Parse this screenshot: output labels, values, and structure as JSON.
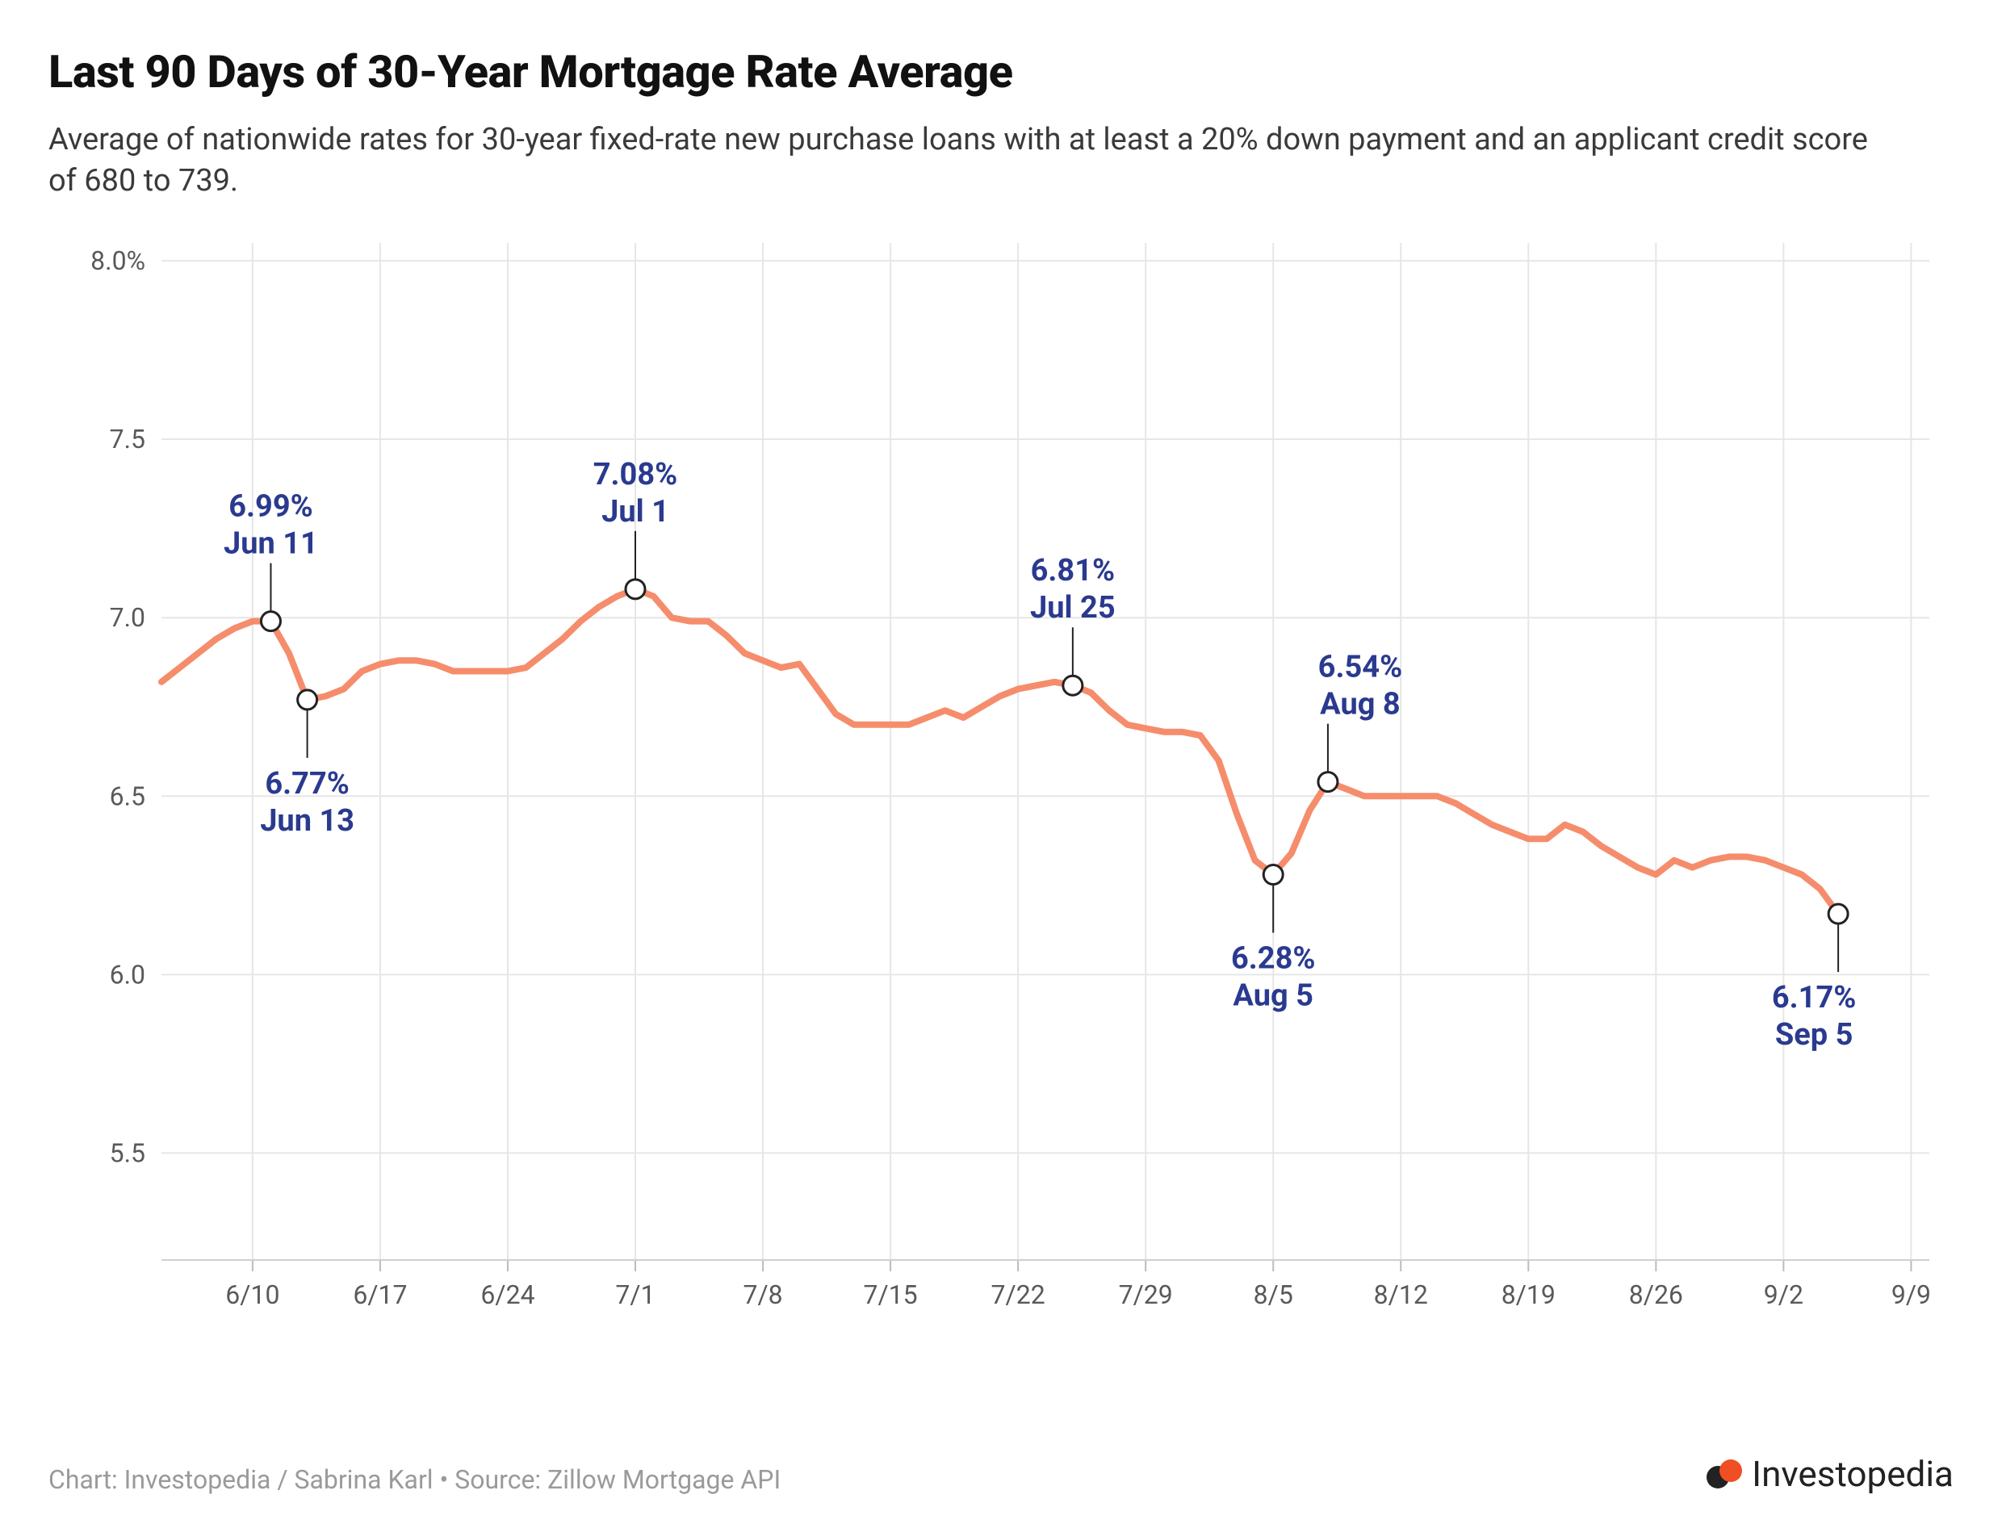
{
  "title": "Last 90 Days of 30-Year Mortgage Rate Average",
  "subtitle": "Average of nationwide rates for 30-year fixed-rate new purchase loans with at least a 20% down payment and an applicant credit score of 680 to 739.",
  "credit": "Chart: Investopedia / Sabrina Karl • Source: Zillow Mortgage API",
  "brand": "Investopedia",
  "chart": {
    "type": "line",
    "background_color": "#ffffff",
    "grid_color": "#e6e6e6",
    "axis_color": "#e6e6e6",
    "axis_label_color": "#595959",
    "axis_fontsize": 32,
    "title_fontsize": 56,
    "subtitle_fontsize": 38,
    "line_color": "#f58d6c",
    "line_width": 8,
    "marker_radius": 12,
    "marker_fill": "#ffffff",
    "marker_stroke": "#222222",
    "marker_stroke_width": 3,
    "leader_color": "#222222",
    "leader_width": 2,
    "annotation_color": "#2a3a8f",
    "annotation_fontsize": 38,
    "annotation_fontweight": 700,
    "x": {
      "min": 0,
      "max": 97,
      "ticks": [
        {
          "t": 5,
          "label": "6/10"
        },
        {
          "t": 12,
          "label": "6/17"
        },
        {
          "t": 19,
          "label": "6/24"
        },
        {
          "t": 26,
          "label": "7/1"
        },
        {
          "t": 33,
          "label": "7/8"
        },
        {
          "t": 40,
          "label": "7/15"
        },
        {
          "t": 47,
          "label": "7/22"
        },
        {
          "t": 54,
          "label": "7/29"
        },
        {
          "t": 61,
          "label": "8/5"
        },
        {
          "t": 68,
          "label": "8/12"
        },
        {
          "t": 75,
          "label": "8/19"
        },
        {
          "t": 82,
          "label": "8/26"
        },
        {
          "t": 89,
          "label": "9/2"
        },
        {
          "t": 96,
          "label": "9/9"
        }
      ]
    },
    "y": {
      "min": 5.2,
      "max": 8.05,
      "ticks": [
        {
          "v": 5.5,
          "label": "5.5"
        },
        {
          "v": 6.0,
          "label": "6.0"
        },
        {
          "v": 6.5,
          "label": "6.5"
        },
        {
          "v": 7.0,
          "label": "7.0"
        },
        {
          "v": 7.5,
          "label": "7.5"
        },
        {
          "v": 8.0,
          "label": "8.0%"
        }
      ]
    },
    "series": [
      {
        "t": 0,
        "v": 6.82
      },
      {
        "t": 1,
        "v": 6.86
      },
      {
        "t": 2,
        "v": 6.9
      },
      {
        "t": 3,
        "v": 6.94
      },
      {
        "t": 4,
        "v": 6.97
      },
      {
        "t": 5,
        "v": 6.99
      },
      {
        "t": 6,
        "v": 6.99
      },
      {
        "t": 7,
        "v": 6.9
      },
      {
        "t": 8,
        "v": 6.77
      },
      {
        "t": 9,
        "v": 6.78
      },
      {
        "t": 10,
        "v": 6.8
      },
      {
        "t": 11,
        "v": 6.85
      },
      {
        "t": 12,
        "v": 6.87
      },
      {
        "t": 13,
        "v": 6.88
      },
      {
        "t": 14,
        "v": 6.88
      },
      {
        "t": 15,
        "v": 6.87
      },
      {
        "t": 16,
        "v": 6.85
      },
      {
        "t": 17,
        "v": 6.85
      },
      {
        "t": 18,
        "v": 6.85
      },
      {
        "t": 19,
        "v": 6.85
      },
      {
        "t": 20,
        "v": 6.86
      },
      {
        "t": 21,
        "v": 6.9
      },
      {
        "t": 22,
        "v": 6.94
      },
      {
        "t": 23,
        "v": 6.99
      },
      {
        "t": 24,
        "v": 7.03
      },
      {
        "t": 25,
        "v": 7.06
      },
      {
        "t": 26,
        "v": 7.08
      },
      {
        "t": 27,
        "v": 7.06
      },
      {
        "t": 28,
        "v": 7.0
      },
      {
        "t": 29,
        "v": 6.99
      },
      {
        "t": 30,
        "v": 6.99
      },
      {
        "t": 31,
        "v": 6.95
      },
      {
        "t": 32,
        "v": 6.9
      },
      {
        "t": 33,
        "v": 6.88
      },
      {
        "t": 34,
        "v": 6.86
      },
      {
        "t": 35,
        "v": 6.87
      },
      {
        "t": 36,
        "v": 6.8
      },
      {
        "t": 37,
        "v": 6.73
      },
      {
        "t": 38,
        "v": 6.7
      },
      {
        "t": 39,
        "v": 6.7
      },
      {
        "t": 40,
        "v": 6.7
      },
      {
        "t": 41,
        "v": 6.7
      },
      {
        "t": 42,
        "v": 6.72
      },
      {
        "t": 43,
        "v": 6.74
      },
      {
        "t": 44,
        "v": 6.72
      },
      {
        "t": 45,
        "v": 6.75
      },
      {
        "t": 46,
        "v": 6.78
      },
      {
        "t": 47,
        "v": 6.8
      },
      {
        "t": 48,
        "v": 6.81
      },
      {
        "t": 49,
        "v": 6.82
      },
      {
        "t": 50,
        "v": 6.81
      },
      {
        "t": 51,
        "v": 6.79
      },
      {
        "t": 52,
        "v": 6.74
      },
      {
        "t": 53,
        "v": 6.7
      },
      {
        "t": 54,
        "v": 6.69
      },
      {
        "t": 55,
        "v": 6.68
      },
      {
        "t": 56,
        "v": 6.68
      },
      {
        "t": 57,
        "v": 6.67
      },
      {
        "t": 58,
        "v": 6.6
      },
      {
        "t": 59,
        "v": 6.45
      },
      {
        "t": 60,
        "v": 6.32
      },
      {
        "t": 61,
        "v": 6.28
      },
      {
        "t": 62,
        "v": 6.34
      },
      {
        "t": 63,
        "v": 6.46
      },
      {
        "t": 64,
        "v": 6.54
      },
      {
        "t": 65,
        "v": 6.52
      },
      {
        "t": 66,
        "v": 6.5
      },
      {
        "t": 67,
        "v": 6.5
      },
      {
        "t": 68,
        "v": 6.5
      },
      {
        "t": 69,
        "v": 6.5
      },
      {
        "t": 70,
        "v": 6.5
      },
      {
        "t": 71,
        "v": 6.48
      },
      {
        "t": 72,
        "v": 6.45
      },
      {
        "t": 73,
        "v": 6.42
      },
      {
        "t": 74,
        "v": 6.4
      },
      {
        "t": 75,
        "v": 6.38
      },
      {
        "t": 76,
        "v": 6.38
      },
      {
        "t": 77,
        "v": 6.42
      },
      {
        "t": 78,
        "v": 6.4
      },
      {
        "t": 79,
        "v": 6.36
      },
      {
        "t": 80,
        "v": 6.33
      },
      {
        "t": 81,
        "v": 6.3
      },
      {
        "t": 82,
        "v": 6.28
      },
      {
        "t": 83,
        "v": 6.32
      },
      {
        "t": 84,
        "v": 6.3
      },
      {
        "t": 85,
        "v": 6.32
      },
      {
        "t": 86,
        "v": 6.33
      },
      {
        "t": 87,
        "v": 6.33
      },
      {
        "t": 88,
        "v": 6.32
      },
      {
        "t": 89,
        "v": 6.3
      },
      {
        "t": 90,
        "v": 6.28
      },
      {
        "t": 91,
        "v": 6.24
      },
      {
        "t": 92,
        "v": 6.17
      }
    ],
    "callouts": [
      {
        "t": 6,
        "v": 6.99,
        "rate": "6.99%",
        "date": "Jun 11",
        "pos": "above",
        "dx": 0
      },
      {
        "t": 8,
        "v": 6.77,
        "rate": "6.77%",
        "date": "Jun 13",
        "pos": "below",
        "dx": 0
      },
      {
        "t": 26,
        "v": 7.08,
        "rate": "7.08%",
        "date": "Jul 1",
        "pos": "above",
        "dx": 0
      },
      {
        "t": 50,
        "v": 6.81,
        "rate": "6.81%",
        "date": "Jul 25",
        "pos": "above",
        "dx": 0
      },
      {
        "t": 61,
        "v": 6.28,
        "rate": "6.28%",
        "date": "Aug 5",
        "pos": "below",
        "dx": 0
      },
      {
        "t": 64,
        "v": 6.54,
        "rate": "6.54%",
        "date": "Aug 8",
        "pos": "above",
        "dx": 40
      },
      {
        "t": 92,
        "v": 6.17,
        "rate": "6.17%",
        "date": "Sep 5",
        "pos": "below",
        "dx": -30
      }
    ]
  }
}
